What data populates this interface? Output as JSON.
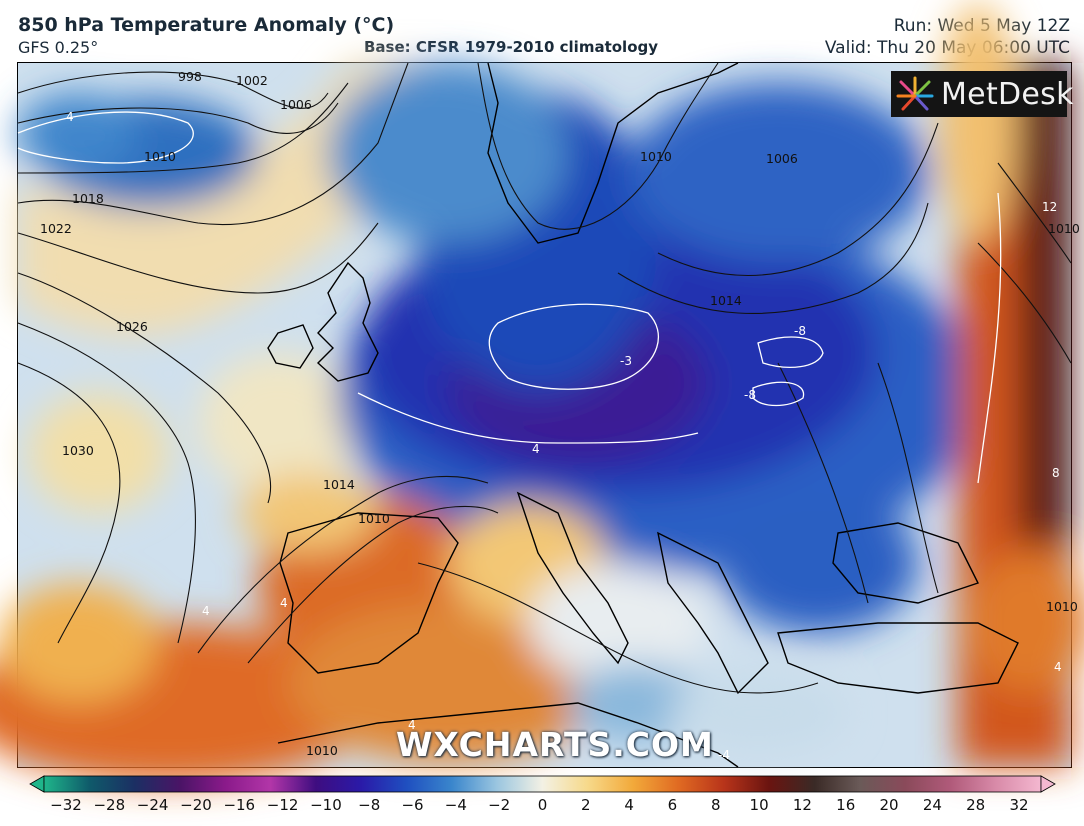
{
  "header": {
    "title": "850 hPa Temperature Anomaly (°C)",
    "subtitle": "GFS 0.25°",
    "base": "Base: CFSR 1979-2010 climatology",
    "run": "Run: Wed 5 May 12Z",
    "valid": "Valid: Thu 20 May 06:00 UTC"
  },
  "logo": {
    "text": "MetDesk"
  },
  "watermark": "WXCHARTS.COM",
  "colorbar": {
    "ticks": [
      "−32",
      "−28",
      "−24",
      "−20",
      "−16",
      "−12",
      "−10",
      "−8",
      "−6",
      "−4",
      "−2",
      "0",
      "2",
      "4",
      "6",
      "8",
      "10",
      "12",
      "16",
      "20",
      "24",
      "28",
      "32"
    ],
    "colors": [
      "#1fb58a",
      "#0f5a6a",
      "#1b2f63",
      "#4a1466",
      "#8a1a8a",
      "#b236a8",
      "#3e0d80",
      "#2a1aa8",
      "#1f4fc0",
      "#3a86cc",
      "#9bc6e0",
      "#f3f1e4",
      "#f7d98a",
      "#f2a93a",
      "#e06a22",
      "#b8341a",
      "#6a1410",
      "#3a2a26",
      "#6a5a58",
      "#8a4a5a",
      "#b05a7a",
      "#d88aa8",
      "#f4b8d0"
    ]
  },
  "map": {
    "isobars": [
      "998",
      "1002",
      "1006",
      "1010",
      "1018",
      "1022",
      "1026",
      "1030",
      "1014",
      "1010",
      "1010",
      "1014",
      "1006",
      "1010",
      "1010",
      "1010"
    ],
    "anomaly_labels": [
      "4",
      "-3",
      "-8",
      "-8",
      "4",
      "4",
      "4",
      "12",
      "8",
      "4",
      "4",
      "-4"
    ]
  }
}
